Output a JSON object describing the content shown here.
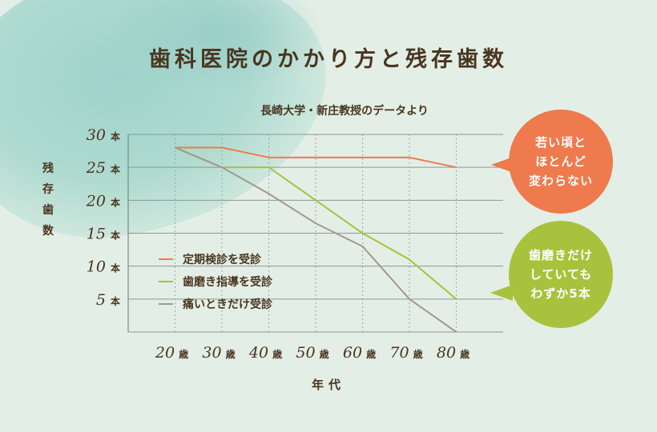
{
  "chart_data": {
    "type": "line",
    "title": "歯科医院のかかり方と残存歯数",
    "subtitle": "長崎大学・新庄教授のデータより",
    "xlabel": "年代",
    "ylabel": "残存歯数",
    "x_unit": "歳",
    "y_unit": "本",
    "x": [
      20,
      30,
      40,
      50,
      60,
      70,
      80
    ],
    "xlim": [
      10,
      90
    ],
    "ylim": [
      0,
      30
    ],
    "y_ticks": [
      5,
      10,
      15,
      20,
      25,
      30
    ],
    "grid": true,
    "legend_position": "bottom-left",
    "series": [
      {
        "name": "定期検診を受診",
        "color": "#ef7a4d",
        "values": [
          28,
          28,
          26.5,
          26.5,
          26.5,
          26.5,
          25
        ]
      },
      {
        "name": "歯磨き指導を受診",
        "color": "#a8c23e",
        "values": [
          28,
          25,
          25,
          20,
          15,
          11,
          5
        ]
      },
      {
        "name": "痛いときだけ受診",
        "color": "#a3998a",
        "values": [
          28,
          25,
          21,
          16.5,
          13,
          5,
          0
        ]
      }
    ],
    "annotations": [
      {
        "text": "若い頃と\nほとんど\n変わらない",
        "color": "#ef7a4d"
      },
      {
        "text": "歯磨きだけ\nしていても\nわずか5本",
        "color": "#a8c23e"
      }
    ]
  }
}
